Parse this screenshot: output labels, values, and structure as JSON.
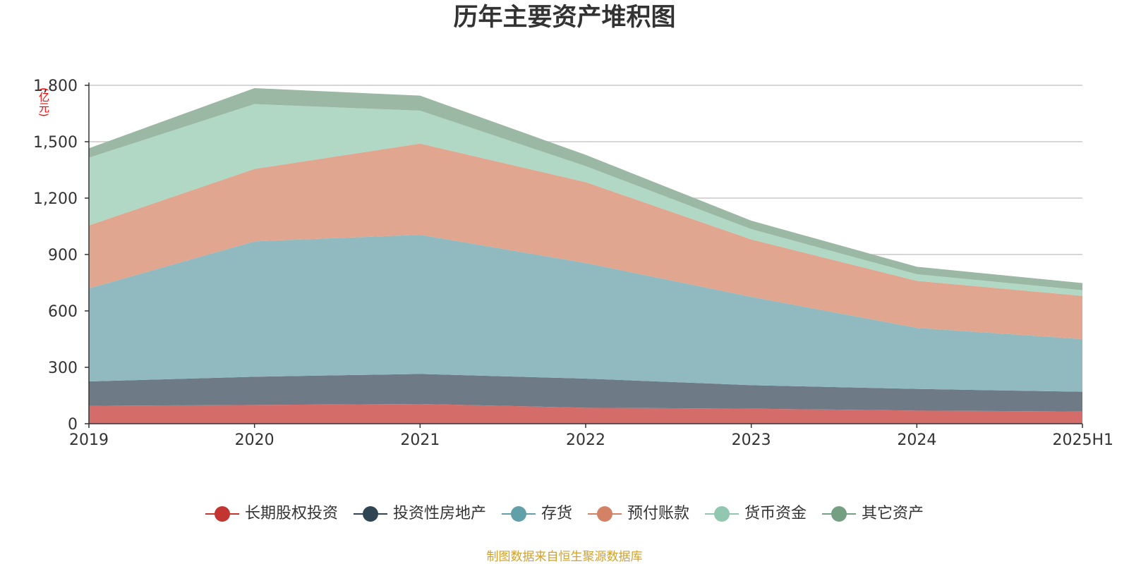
{
  "chart_data": {
    "type": "area",
    "stacked": true,
    "title": "历年主要资产堆积图",
    "y_unit_label": "(亿元)",
    "categories": [
      "2019",
      "2020",
      "2021",
      "2022",
      "2023",
      "2024",
      "2025H1"
    ],
    "ylim": [
      0,
      1800
    ],
    "yticks": [
      0,
      300,
      600,
      900,
      1200,
      1500,
      1800
    ],
    "ytick_labels": [
      "0",
      "300",
      "600",
      "900",
      "1,200",
      "1,500",
      "1,800"
    ],
    "grid": true,
    "legend_position": "bottom-center",
    "series": [
      {
        "name": "长期股权投资",
        "color": "#c23531",
        "fill": "#d46c69",
        "values": [
          95,
          100,
          105,
          85,
          80,
          70,
          65
        ]
      },
      {
        "name": "投资性房地产",
        "color": "#2f4554",
        "fill": "#6e7b86",
        "values": [
          130,
          150,
          160,
          155,
          125,
          115,
          105
        ]
      },
      {
        "name": "存货",
        "color": "#61a0a8",
        "fill": "#90bac0",
        "values": [
          495,
          720,
          740,
          615,
          470,
          325,
          280
        ]
      },
      {
        "name": "预付账款",
        "color": "#d48265",
        "fill": "#e0a68f",
        "values": [
          335,
          385,
          485,
          430,
          305,
          250,
          230
        ]
      },
      {
        "name": "货币资金",
        "color": "#91c7ae",
        "fill": "#b1d8c5",
        "values": [
          360,
          345,
          175,
          85,
          55,
          35,
          30
        ]
      },
      {
        "name": "其它资产",
        "color": "#749f83",
        "fill": "#9bb8a4",
        "values": [
          50,
          85,
          80,
          60,
          45,
          40,
          38
        ]
      }
    ]
  },
  "source_note": "制图数据来自恒生聚源数据库"
}
